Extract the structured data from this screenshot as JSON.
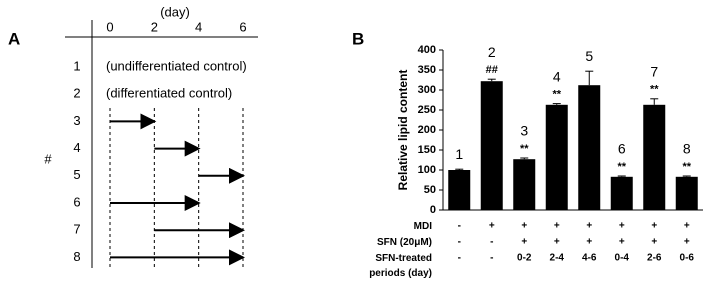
{
  "panel_a": {
    "letter": "A",
    "axis_label": "(day)",
    "days": [
      0,
      2,
      4,
      6
    ],
    "side_label": "#",
    "rows": [
      {
        "number": "1",
        "label": "(undifferentiated control)"
      },
      {
        "number": "2",
        "label": "(differentiated control)"
      },
      {
        "number": "3",
        "start": 0,
        "end": 2
      },
      {
        "number": "4",
        "start": 2,
        "end": 4
      },
      {
        "number": "5",
        "start": 4,
        "end": 6
      },
      {
        "number": "6",
        "start": 0,
        "end": 4
      },
      {
        "number": "7",
        "start": 2,
        "end": 6
      },
      {
        "number": "8",
        "start": 0,
        "end": 6
      }
    ]
  },
  "chart_data": {
    "type": "bar",
    "letter": "B",
    "y_label": "Relative lipid content",
    "categories": [
      "1",
      "2",
      "3",
      "4",
      "5",
      "6",
      "7",
      "8"
    ],
    "values": [
      100,
      322,
      127,
      263,
      312,
      83,
      263,
      83
    ],
    "errors": [
      2,
      5,
      3,
      3,
      35,
      2,
      15,
      2
    ],
    "annotations": [
      null,
      "##",
      "**",
      "**",
      null,
      "**",
      "**",
      "**"
    ],
    "color": "#000000",
    "ylim": [
      0,
      400
    ],
    "yticks": [
      0,
      50,
      100,
      150,
      200,
      250,
      300,
      350,
      400
    ],
    "table": [
      {
        "label": "MDI",
        "cells": [
          "-",
          "+",
          "+",
          "+",
          "+",
          "+",
          "+",
          "+"
        ]
      },
      {
        "label": "SFN (20μM)",
        "cells": [
          "-",
          "-",
          "+",
          "+",
          "+",
          "+",
          "+",
          "+"
        ]
      },
      {
        "label": "SFN-treated\nperiods (day)",
        "cells": [
          "-",
          "-",
          "0-2",
          "2-4",
          "4-6",
          "0-4",
          "2-6",
          "0-6"
        ]
      }
    ]
  }
}
